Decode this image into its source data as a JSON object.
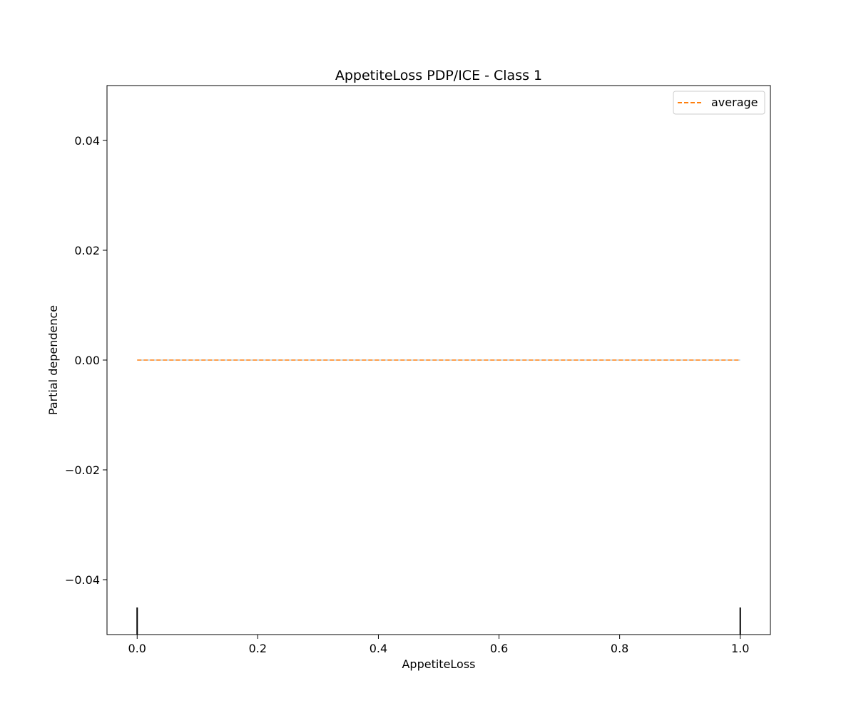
{
  "chart_data": {
    "type": "line",
    "title": "AppetiteLoss PDP/ICE - Class 1",
    "xlabel": "AppetiteLoss",
    "ylabel": "Partial dependence",
    "xlim": [
      -0.05,
      1.05
    ],
    "ylim": [
      -0.05,
      0.05
    ],
    "x_ticks": [
      0.0,
      0.2,
      0.4,
      0.6,
      0.8,
      1.0
    ],
    "x_tick_labels": [
      "0.0",
      "0.2",
      "0.4",
      "0.6",
      "0.8",
      "1.0"
    ],
    "y_ticks": [
      -0.04,
      -0.02,
      0.0,
      0.02,
      0.04
    ],
    "y_tick_labels": [
      "−0.04",
      "−0.02",
      "0.00",
      "0.02",
      "0.04"
    ],
    "grid": false,
    "legend_position": "top-right",
    "series": [
      {
        "name": "average",
        "x": [
          0.0,
          1.0
        ],
        "y": [
          0.0,
          0.0
        ],
        "color": "#ff7f0e",
        "style": "dashed"
      }
    ],
    "ice_lines": {
      "x": [
        0.0,
        1.0
      ],
      "y": [
        0.0,
        0.0
      ],
      "color": "#1f77b4"
    },
    "rug": {
      "x": [
        0.0,
        1.0
      ],
      "color": "#000000"
    }
  }
}
